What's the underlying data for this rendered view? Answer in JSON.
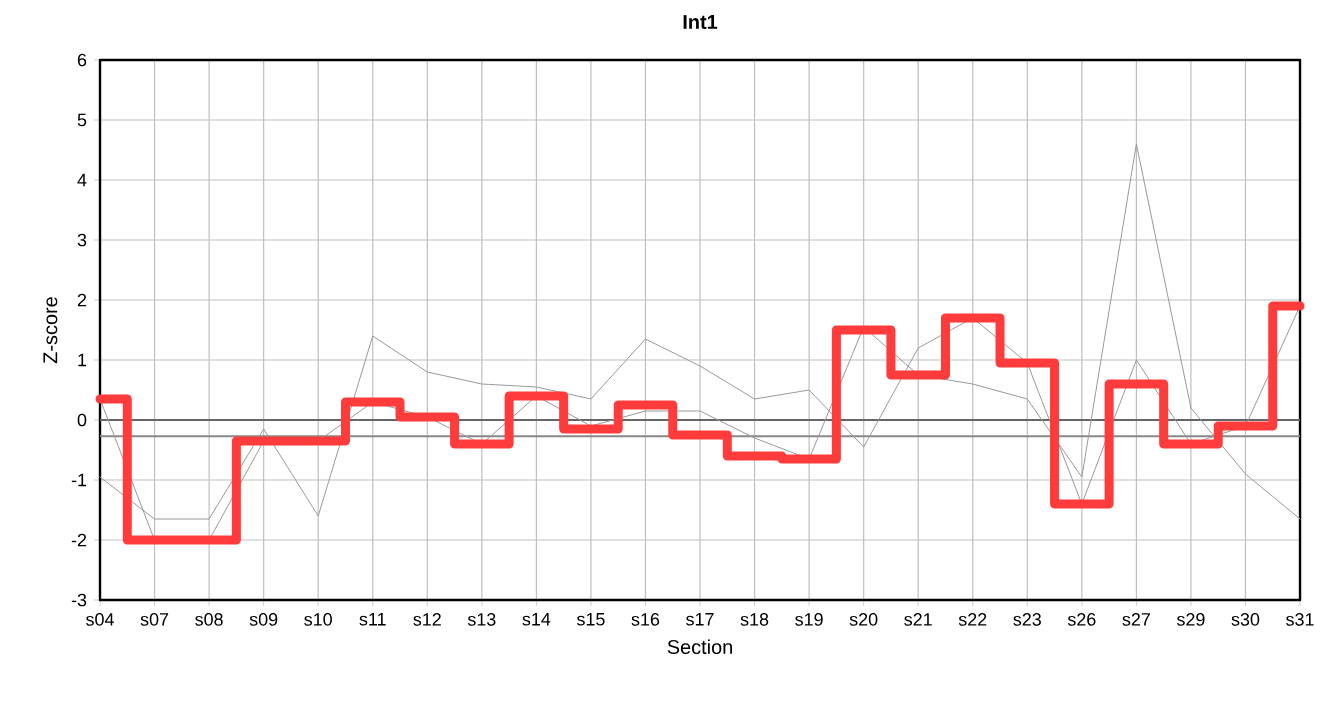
{
  "chart_data": {
    "type": "line",
    "title": "Int1",
    "xlabel": "Section",
    "ylabel": "Z-score",
    "categories": [
      "s04",
      "s07",
      "s08",
      "s09",
      "s10",
      "s11",
      "s12",
      "s13",
      "s14",
      "s15",
      "s16",
      "s17",
      "s18",
      "s19",
      "s20",
      "s21",
      "s22",
      "s23",
      "s26",
      "s27",
      "s29",
      "s30",
      "s31"
    ],
    "ylim": [
      -3,
      6
    ],
    "yticks": [
      -3,
      -2,
      -1,
      0,
      1,
      2,
      3,
      4,
      5,
      6
    ],
    "grid": true,
    "marker": "none",
    "line_style": "solid",
    "ref_lines": [
      {
        "axis": "y",
        "value": 0,
        "color": "#666666"
      },
      {
        "axis": "y",
        "value": -0.27,
        "color": "#888888"
      }
    ],
    "series": [
      {
        "type": "line",
        "color": "#999999",
        "values": [
          -0.95,
          -1.65,
          -1.65,
          -0.15,
          -1.6,
          1.4,
          0.8,
          0.6,
          0.55,
          0.35,
          1.35,
          0.9,
          0.35,
          0.5,
          -0.45,
          1.2,
          1.7,
          0.95,
          -1.4,
          1.0,
          -0.4,
          -0.1,
          1.9
        ]
      },
      {
        "type": "line",
        "color": "#999999",
        "values": [
          0.35,
          -2,
          -2,
          -0.35,
          -0.35,
          0.3,
          0.05,
          -0.4,
          0.4,
          -0.1,
          0.15,
          0.15,
          -0.3,
          -0.65,
          1.55,
          0.75,
          0.6,
          0.35,
          -0.95,
          4.6,
          0.2,
          -0.9,
          -1.65
        ]
      },
      {
        "type": "step",
        "color": "#ff3b3b",
        "values": [
          0.35,
          -2,
          -2,
          -0.35,
          -0.35,
          0.3,
          0.05,
          -0.4,
          0.4,
          -0.15,
          0.25,
          -0.25,
          -0.6,
          -0.65,
          1.5,
          0.75,
          1.7,
          0.95,
          -1.4,
          0.6,
          -0.4,
          -0.1,
          1.9
        ]
      }
    ]
  }
}
